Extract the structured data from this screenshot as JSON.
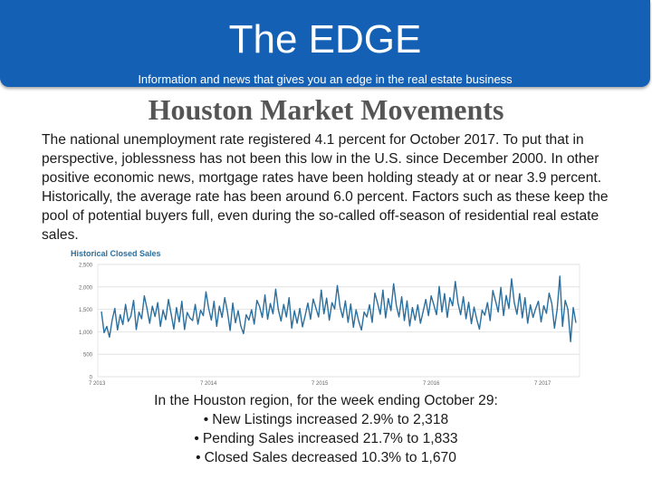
{
  "banner": {
    "title": "The EDGE",
    "subtitle": "Information and news that gives you an edge in the real estate business",
    "color": "#1360b4"
  },
  "heading": "Houston Market Movements",
  "body": "The national unemployment rate registered 4.1 percent for October 2017. To put that in perspective, joblessness has not been this low in the U.S. since December 2000. In other positive economic news, mortgage rates have been holding steady at or near 3.9 percent. Historically, the average rate has been around 6.0 percent. Factors such as these keep the pool of potential buyers full, even during the so-called off-season of residential real estate sales.",
  "chart_data": {
    "type": "line",
    "title": "Historical Closed Sales",
    "xlabel": "",
    "ylabel": "",
    "ylim": [
      0,
      2500
    ],
    "yticks": [
      "2,500",
      "2,000",
      "1,500",
      "1,000",
      "500",
      "0"
    ],
    "xticks": [
      "7 2013",
      "7 2014",
      "7 2015",
      "7 2016",
      "7 2017"
    ],
    "line_color": "#2a6f9e",
    "grid": true,
    "series": [
      {
        "values": [
          1450,
          980,
          1120,
          880,
          1260,
          1520,
          1040,
          1380,
          1160,
          1610,
          1230,
          1350,
          1700,
          1050,
          1440,
          1290,
          1800,
          1520,
          1190,
          1570,
          1340,
          1650,
          1120,
          1480,
          1270,
          1720,
          1400,
          1060,
          1540,
          1220,
          1680,
          1050,
          1430,
          1310,
          1250,
          1610,
          1170,
          1480,
          1360,
          1890,
          1520,
          1260,
          1680,
          1120,
          1570,
          1320,
          1760,
          1450,
          1030,
          1640,
          1200,
          1470,
          1130,
          960,
          1380,
          1260,
          1490,
          1170,
          1700,
          1560,
          1320,
          1820,
          1280,
          1630,
          1400,
          1950,
          1490,
          1240,
          1610,
          1330,
          1760,
          1080,
          1470,
          1190,
          1520,
          1110,
          1360,
          1640,
          1280,
          1730,
          1530,
          1330,
          1930,
          1400,
          1750,
          1260,
          1650,
          1510,
          2030,
          1560,
          1320,
          1690,
          1210,
          1620,
          1100,
          1490,
          1230,
          1040,
          1440,
          1330,
          1600,
          1210,
          1860,
          1640,
          1390,
          1930,
          1310,
          1740,
          1470,
          2070,
          1590,
          1330,
          1780,
          1250,
          1690,
          1130,
          1540,
          1260,
          1600,
          1190,
          1450,
          1720,
          1360,
          1800,
          1600,
          1380,
          2010,
          1440,
          1850,
          1320,
          1760,
          1580,
          2120,
          1640,
          1380,
          1780,
          1290,
          1660,
          1180,
          1550,
          1280,
          1060,
          1480,
          1370,
          1650,
          1250,
          1920,
          1690,
          1440,
          1990,
          1360,
          1810,
          1520,
          2180,
          1650,
          1390,
          1850,
          1310,
          1760,
          1190,
          1600,
          1320,
          1520,
          1680,
          1220,
          1580,
          1410,
          1860,
          1630,
          1080,
          1500,
          2240,
          1120,
          1700,
          1500,
          780,
          1540,
          1200
        ]
      }
    ]
  },
  "houston": {
    "intro": "In the Houston region, for the week ending October 29:",
    "items": [
      "New Listings increased 2.9% to 2,318",
      "Pending Sales increased 21.7% to 1,833",
      "Closed Sales decreased 10.3% to 1,670"
    ],
    "bullet": "•"
  }
}
